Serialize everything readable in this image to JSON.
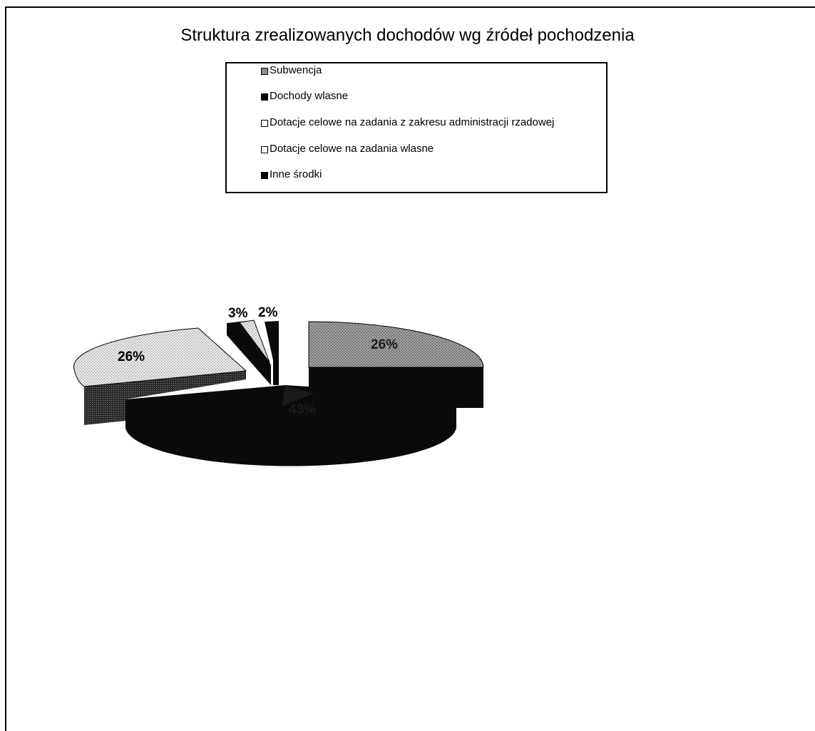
{
  "chart_data": {
    "type": "pie",
    "title": "Struktura zrealizowanych dochodów wg źródeł pochodzenia",
    "legend_position": "top",
    "slices": [
      {
        "name": "Subwencja",
        "percent": 26,
        "label": "26%",
        "color": "#8c8c8c"
      },
      {
        "name": "Dochody własne",
        "percent": 43,
        "label": "",
        "color": "#0a0a0a"
      },
      {
        "name": "Dotacje celowe na zadania z zakresu administracji rządowej",
        "percent": 26,
        "label": "26%",
        "color": "#d9d9d9"
      },
      {
        "name": "Dotacje celowe na zadania własne",
        "percent": 3,
        "label": "3%",
        "color": "#c4c4c4"
      },
      {
        "name": "Inne środki",
        "percent": 2,
        "label": "2%",
        "color": "#0a0a0a"
      }
    ]
  },
  "legend_items": [
    {
      "label": "Subwencja",
      "color": "#8c8c8c"
    },
    {
      "label": "Dochody wlasne",
      "color": "#000000"
    },
    {
      "label": "Dotacje celowe na zadania z zakresu administracji rzadowej",
      "color": "#ffffff"
    },
    {
      "label": "Dotacje celowe na zadania wlasne",
      "color": "#ffffff"
    },
    {
      "label": "Inne środki",
      "color": "#000000"
    }
  ]
}
